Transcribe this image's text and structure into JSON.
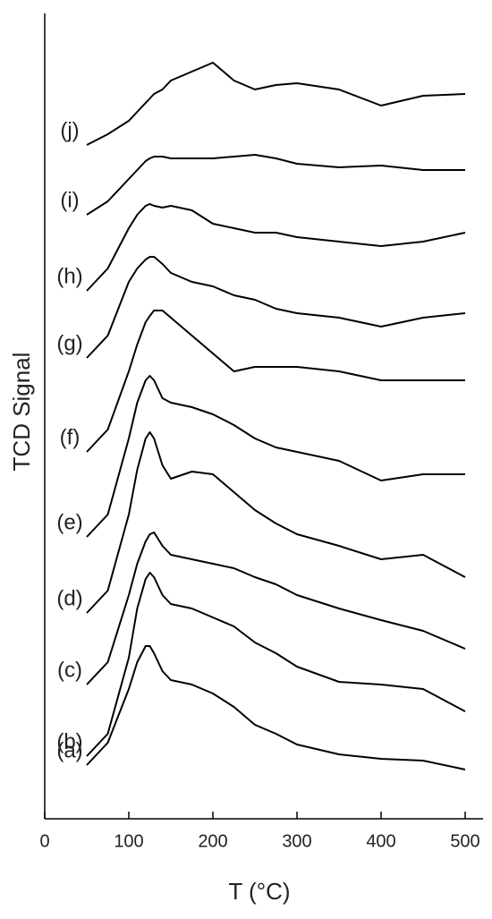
{
  "chart_data": {
    "type": "line",
    "x_label": "T (°C)",
    "y_label": "TCD Signal",
    "x": [
      50,
      75,
      100,
      110,
      120,
      125,
      130,
      140,
      150,
      175,
      200,
      225,
      250,
      275,
      300,
      350,
      400,
      450,
      500
    ],
    "xlim": [
      0,
      500
    ],
    "xticks": [
      0,
      100,
      200,
      300,
      400,
      500
    ],
    "ylim": [
      0,
      900
    ],
    "series": [
      {
        "name": "(a)",
        "color": "#000000",
        "values": [
          60,
          85,
          145,
          175,
          193,
          193,
          185,
          165,
          155,
          150,
          140,
          125,
          105,
          95,
          83,
          72,
          67,
          65,
          55
        ]
      },
      {
        "name": "(b)",
        "color": "#000000",
        "values": [
          70,
          95,
          180,
          235,
          268,
          275,
          270,
          250,
          240,
          235,
          225,
          215,
          197,
          185,
          170,
          153,
          150,
          145,
          120
        ]
      },
      {
        "name": "(c)",
        "color": "#000000",
        "values": [
          150,
          175,
          250,
          285,
          310,
          318,
          320,
          305,
          295,
          290,
          285,
          280,
          270,
          262,
          250,
          235,
          222,
          210,
          190
        ]
      },
      {
        "name": "(d)",
        "color": "#000000",
        "values": [
          230,
          255,
          340,
          390,
          425,
          432,
          425,
          395,
          380,
          388,
          385,
          365,
          345,
          330,
          318,
          305,
          290,
          295,
          270
        ]
      },
      {
        "name": "(e)",
        "color": "#000000",
        "values": [
          315,
          340,
          425,
          465,
          490,
          495,
          490,
          470,
          465,
          460,
          452,
          440,
          425,
          415,
          410,
          400,
          378,
          385,
          385
        ]
      },
      {
        "name": "(f)",
        "color": "#000000",
        "values": [
          410,
          435,
          500,
          530,
          555,
          562,
          568,
          568,
          560,
          540,
          520,
          500,
          505,
          505,
          505,
          500,
          490,
          490,
          490
        ]
      },
      {
        "name": "(g)",
        "color": "#000000",
        "values": [
          515,
          540,
          600,
          615,
          625,
          628,
          628,
          620,
          610,
          600,
          595,
          585,
          580,
          570,
          565,
          560,
          550,
          560,
          565
        ]
      },
      {
        "name": "(h)",
        "color": "#000000",
        "values": [
          590,
          615,
          660,
          675,
          685,
          687,
          685,
          683,
          685,
          680,
          665,
          660,
          655,
          655,
          650,
          645,
          640,
          645,
          655
        ]
      },
      {
        "name": "(i)",
        "color": "#000000",
        "values": [
          675,
          690,
          715,
          725,
          735,
          738,
          740,
          740,
          738,
          738,
          738,
          740,
          742,
          738,
          732,
          728,
          730,
          725,
          725
        ]
      },
      {
        "name": "(j)",
        "color": "#000000",
        "values": [
          753,
          765,
          780,
          790,
          800,
          805,
          810,
          815,
          825,
          835,
          845,
          825,
          815,
          820,
          822,
          815,
          797,
          808,
          810
        ]
      }
    ]
  }
}
